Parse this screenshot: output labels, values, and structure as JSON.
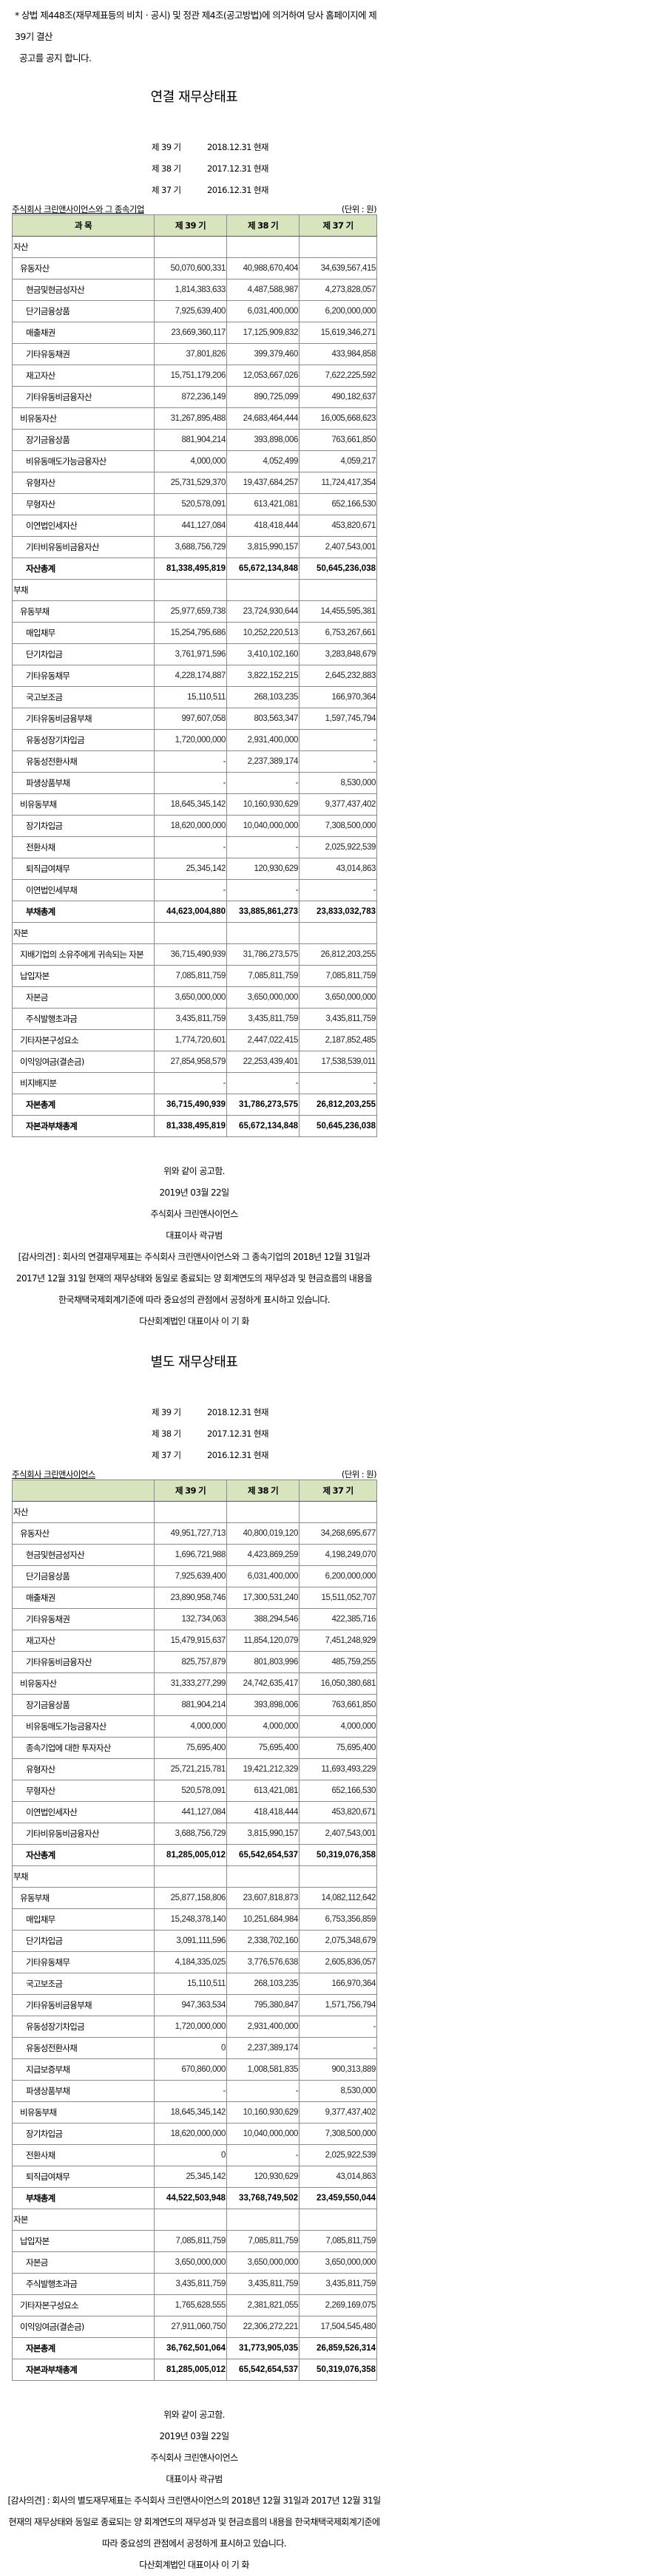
{
  "intro": {
    "line1": "* 상법 제448조(재무제표등의 비치ㆍ공시) 및 정관 제4조(공고방법)에 의거하여 당사 홈페이지에 제39기 결산",
    "line2": "공고를 공지 합니다."
  },
  "statements": [
    {
      "title": "연결 재무상태표",
      "periods": [
        {
          "period": "제 39 기",
          "date": "2018.12.31 현재"
        },
        {
          "period": "제 38 기",
          "date": "2017.12.31 현재"
        },
        {
          "period": "제 37 기",
          "date": "2016.12.31 현재"
        }
      ],
      "company": "주식회사 크린앤사이언스와 그 종속기업",
      "unit": "(단위 : 원)",
      "headers": [
        "과 목",
        "제 39 기",
        "제 38 기",
        "제 37 기"
      ],
      "rows": [
        {
          "label": "자산",
          "values": [
            "",
            "",
            ""
          ],
          "level": 0
        },
        {
          "label": "유동자산",
          "values": [
            "50,070,600,331",
            "40,988,670,404",
            "34,639,567,415"
          ],
          "level": 1
        },
        {
          "label": "현금및현금성자산",
          "values": [
            "1,814,383,633",
            "4,487,588,987",
            "4,273,828,057"
          ],
          "level": 2
        },
        {
          "label": "단기금융상품",
          "values": [
            "7,925,639,400",
            "6,031,400,000",
            "6,200,000,000"
          ],
          "level": 2
        },
        {
          "label": "매출채권",
          "values": [
            "23,669,360,117",
            "17,125,909,832",
            "15,619,346,271"
          ],
          "level": 2
        },
        {
          "label": "기타유동채권",
          "values": [
            "37,801,826",
            "399,379,460",
            "433,984,858"
          ],
          "level": 2
        },
        {
          "label": "재고자산",
          "values": [
            "15,751,179,206",
            "12,053,667,026",
            "7,622,225,592"
          ],
          "level": 2
        },
        {
          "label": "기타유동비금융자산",
          "values": [
            "872,236,149",
            "890,725,099",
            "490,182,637"
          ],
          "level": 2
        },
        {
          "label": "비유동자산",
          "values": [
            "31,267,895,488",
            "24,683,464,444",
            "16,005,668,623"
          ],
          "level": 1
        },
        {
          "label": "장기금융상품",
          "values": [
            "881,904,214",
            "393,898,006",
            "763,661,850"
          ],
          "level": 2
        },
        {
          "label": "비유동매도가능금융자산",
          "values": [
            "4,000,000",
            "4,052,499",
            "4,059,217"
          ],
          "level": 2
        },
        {
          "label": "유형자산",
          "values": [
            "25,731,529,370",
            "19,437,684,257",
            "11,724,417,354"
          ],
          "level": 2
        },
        {
          "label": "무형자산",
          "values": [
            "520,578,091",
            "613,421,081",
            "652,166,530"
          ],
          "level": 2
        },
        {
          "label": "이연법인세자산",
          "values": [
            "441,127,084",
            "418,418,444",
            "453,820,671"
          ],
          "level": 2
        },
        {
          "label": "기타비유동비금융자산",
          "values": [
            "3,688,756,729",
            "3,815,990,157",
            "2,407,543,001"
          ],
          "level": 2
        },
        {
          "label": "자산총계",
          "values": [
            "81,338,495,819",
            "65,672,134,848",
            "50,645,236,038"
          ],
          "level": 1,
          "bold": true
        },
        {
          "label": "부채",
          "values": [
            "",
            "",
            ""
          ],
          "level": 0
        },
        {
          "label": "유동부채",
          "values": [
            "25,977,659,738",
            "23,724,930,644",
            "14,455,595,381"
          ],
          "level": 1
        },
        {
          "label": "매입채무",
          "values": [
            "15,254,795,686",
            "10,252,220,513",
            "6,753,267,661"
          ],
          "level": 2
        },
        {
          "label": "단기차입금",
          "values": [
            "3,761,971,596",
            "3,410,102,160",
            "3,283,848,679"
          ],
          "level": 2
        },
        {
          "label": "기타유동채무",
          "values": [
            "4,228,174,887",
            "3,822,152,215",
            "2,645,232,883"
          ],
          "level": 2
        },
        {
          "label": "국고보조금",
          "values": [
            "15,110,511",
            "268,103,235",
            "166,970,364"
          ],
          "level": 2
        },
        {
          "label": "기타유동비금융부채",
          "values": [
            "997,607,058",
            "803,563,347",
            "1,597,745,794"
          ],
          "level": 2
        },
        {
          "label": "유동성장기차입금",
          "values": [
            "1,720,000,000",
            "2,931,400,000",
            "-"
          ],
          "level": 2
        },
        {
          "label": "유동성전환사채",
          "values": [
            "-",
            "2,237,389,174",
            "-"
          ],
          "level": 2
        },
        {
          "label": "파생상품부채",
          "values": [
            "-",
            "-",
            "8,530,000"
          ],
          "level": 2
        },
        {
          "label": "비유동부채",
          "values": [
            "18,645,345,142",
            "10,160,930,629",
            "9,377,437,402"
          ],
          "level": 1
        },
        {
          "label": "장기차입금",
          "values": [
            "18,620,000,000",
            "10,040,000,000",
            "7,308,500,000"
          ],
          "level": 2
        },
        {
          "label": "전환사채",
          "values": [
            "-",
            "-",
            "2,025,922,539"
          ],
          "level": 2
        },
        {
          "label": "퇴직급여채무",
          "values": [
            "25,345,142",
            "120,930,629",
            "43,014,863"
          ],
          "level": 2
        },
        {
          "label": "이연법인세부채",
          "values": [
            "-",
            "-",
            "-"
          ],
          "level": 2
        },
        {
          "label": "부채총계",
          "values": [
            "44,623,004,880",
            "33,885,861,273",
            "23,833,032,783"
          ],
          "level": 1,
          "bold": true
        },
        {
          "label": "자본",
          "values": [
            "",
            "",
            ""
          ],
          "level": 0
        },
        {
          "label": "지배기업의 소유주에게 귀속되는 자본",
          "values": [
            "36,715,490,939",
            "31,786,273,575",
            "26,812,203,255"
          ],
          "level": 1
        },
        {
          "label": "납입자본",
          "values": [
            "7,085,811,759",
            "7,085,811,759",
            "7,085,811,759"
          ],
          "level": 1
        },
        {
          "label": "자본금",
          "values": [
            "3,650,000,000",
            "3,650,000,000",
            "3,650,000,000"
          ],
          "level": 2
        },
        {
          "label": "주식발행초과금",
          "values": [
            "3,435,811,759",
            "3,435,811,759",
            "3,435,811,759"
          ],
          "level": 2
        },
        {
          "label": "기타자본구성요소",
          "values": [
            "1,774,720,601",
            "2,447,022,415",
            "2,187,852,485"
          ],
          "level": 1
        },
        {
          "label": "이익잉여금(결손금)",
          "values": [
            "27,854,958,579",
            "22,253,439,401",
            "17,538,539,011"
          ],
          "level": 1
        },
        {
          "label": "비지배지분",
          "values": [
            "-",
            "-",
            "-"
          ],
          "level": 1
        },
        {
          "label": "자본총계",
          "values": [
            "36,715,490,939",
            "31,786,273,575",
            "26,812,203,255"
          ],
          "level": 1,
          "bold": true
        },
        {
          "label": "자본과부채총계",
          "values": [
            "81,338,495,819",
            "65,672,134,848",
            "50,645,236,038"
          ],
          "level": 1,
          "bold": true
        }
      ],
      "footer": {
        "notice": "위와 같이 공고함.",
        "date": "2019년 03월 22일",
        "company": "주식회사 크린앤사이언스",
        "ceo": "대표이사 곽규범",
        "audit": [
          "[감사의견] : 회사의 연결재무제표는 주식회사 크린앤사이언스와 그 종속기업의 2018년 12월 31일과",
          "2017년 12월 31일 현재의 재무상태와 동일로 종료되는 양 회계연도의 재무성과 및 현금흐름의 내용을",
          "한국채택국제회계기준에 따라 중요성의 관점에서 공정하게 표시하고 있습니다."
        ],
        "auditor": "다산회계법인 대표이사 이 기 화"
      }
    },
    {
      "title": "별도 재무상태표",
      "periods": [
        {
          "period": "제 39 기",
          "date": "2018.12.31 현재"
        },
        {
          "period": "제 38 기",
          "date": "2017.12.31 현재"
        },
        {
          "period": "제 37 기",
          "date": "2016.12.31 현재"
        }
      ],
      "company": "주식회사 크린앤사이언스",
      "unit": "(단위 : 원)",
      "headers": [
        "",
        "제 39 기",
        "제 38 기",
        "제 37 기"
      ],
      "rows": [
        {
          "label": "자산",
          "values": [
            "",
            "",
            ""
          ],
          "level": 0
        },
        {
          "label": "유동자산",
          "values": [
            "49,951,727,713",
            "40,800,019,120",
            "34,268,695,677"
          ],
          "level": 1
        },
        {
          "label": "현금및현금성자산",
          "values": [
            "1,696,721,988",
            "4,423,869,259",
            "4,198,249,070"
          ],
          "level": 2
        },
        {
          "label": "단기금융상품",
          "values": [
            "7,925,639,400",
            "6,031,400,000",
            "6,200,000,000"
          ],
          "level": 2
        },
        {
          "label": "매출채권",
          "values": [
            "23,890,958,746",
            "17,300,531,240",
            "15,511,052,707"
          ],
          "level": 2
        },
        {
          "label": "기타유동채권",
          "values": [
            "132,734,063",
            "388,294,546",
            "422,385,716"
          ],
          "level": 2
        },
        {
          "label": "재고자산",
          "values": [
            "15,479,915,637",
            "11,854,120,079",
            "7,451,248,929"
          ],
          "level": 2
        },
        {
          "label": "기타유동비금융자산",
          "values": [
            "825,757,879",
            "801,803,996",
            "485,759,255"
          ],
          "level": 2
        },
        {
          "label": "비유동자산",
          "values": [
            "31,333,277,299",
            "24,742,635,417",
            "16,050,380,681"
          ],
          "level": 1
        },
        {
          "label": "장기금융상품",
          "values": [
            "881,904,214",
            "393,898,006",
            "763,661,850"
          ],
          "level": 2
        },
        {
          "label": "비유동매도가능금융자산",
          "values": [
            "4,000,000",
            "4,000,000",
            "4,000,000"
          ],
          "level": 2
        },
        {
          "label": "종속기업에 대한 투자자산",
          "values": [
            "75,695,400",
            "75,695,400",
            "75,695,400"
          ],
          "level": 2
        },
        {
          "label": "유형자산",
          "values": [
            "25,721,215,781",
            "19,421,212,329",
            "11,693,493,229"
          ],
          "level": 2
        },
        {
          "label": "무형자산",
          "values": [
            "520,578,091",
            "613,421,081",
            "652,166,530"
          ],
          "level": 2
        },
        {
          "label": "이연법인세자산",
          "values": [
            "441,127,084",
            "418,418,444",
            "453,820,671"
          ],
          "level": 2
        },
        {
          "label": "기타비유동비금융자산",
          "values": [
            "3,688,756,729",
            "3,815,990,157",
            "2,407,543,001"
          ],
          "level": 2
        },
        {
          "label": "자산총계",
          "values": [
            "81,285,005,012",
            "65,542,654,537",
            "50,319,076,358"
          ],
          "level": 1,
          "bold": true
        },
        {
          "label": "부채",
          "values": [
            "",
            "",
            ""
          ],
          "level": 0
        },
        {
          "label": "유동부채",
          "values": [
            "25,877,158,806",
            "23,607,818,873",
            "14,082,112,642"
          ],
          "level": 1
        },
        {
          "label": "매입채무",
          "values": [
            "15,248,378,140",
            "10,251,684,984",
            "6,753,356,859"
          ],
          "level": 2
        },
        {
          "label": "단기차입금",
          "values": [
            "3,091,111,596",
            "2,338,702,160",
            "2,075,348,679"
          ],
          "level": 2
        },
        {
          "label": "기타유동채무",
          "values": [
            "4,184,335,025",
            "3,776,576,638",
            "2,605,836,057"
          ],
          "level": 2
        },
        {
          "label": "국고보조금",
          "values": [
            "15,110,511",
            "268,103,235",
            "166,970,364"
          ],
          "level": 2
        },
        {
          "label": "기타유동비금융부채",
          "values": [
            "947,363,534",
            "795,380,847",
            "1,571,756,794"
          ],
          "level": 2
        },
        {
          "label": "유동성장기차입금",
          "values": [
            "1,720,000,000",
            "2,931,400,000",
            "-"
          ],
          "level": 2
        },
        {
          "label": "유동성전환사채",
          "values": [
            "0",
            "2,237,389,174",
            "-"
          ],
          "level": 2
        },
        {
          "label": "지급보증부채",
          "values": [
            "670,860,000",
            "1,008,581,835",
            "900,313,889"
          ],
          "level": 2
        },
        {
          "label": "파생상품부채",
          "values": [
            "-",
            "-",
            "8,530,000"
          ],
          "level": 2
        },
        {
          "label": "비유동부채",
          "values": [
            "18,645,345,142",
            "10,160,930,629",
            "9,377,437,402"
          ],
          "level": 1
        },
        {
          "label": "장기차입금",
          "values": [
            "18,620,000,000",
            "10,040,000,000",
            "7,308,500,000"
          ],
          "level": 2
        },
        {
          "label": "전환사채",
          "values": [
            "0",
            "-",
            "2,025,922,539"
          ],
          "level": 2
        },
        {
          "label": "퇴직급여채무",
          "values": [
            "25,345,142",
            "120,930,629",
            "43,014,863"
          ],
          "level": 2
        },
        {
          "label": "부채총계",
          "values": [
            "44,522,503,948",
            "33,768,749,502",
            "23,459,550,044"
          ],
          "level": 1,
          "bold": true
        },
        {
          "label": "자본",
          "values": [
            "",
            "",
            ""
          ],
          "level": 0
        },
        {
          "label": "납입자본",
          "values": [
            "7,085,811,759",
            "7,085,811,759",
            "7,085,811,759"
          ],
          "level": 1
        },
        {
          "label": "자본금",
          "values": [
            "3,650,000,000",
            "3,650,000,000",
            "3,650,000,000"
          ],
          "level": 2
        },
        {
          "label": "주식발행초과금",
          "values": [
            "3,435,811,759",
            "3,435,811,759",
            "3,435,811,759"
          ],
          "level": 2
        },
        {
          "label": "기타자본구성요소",
          "values": [
            "1,765,628,555",
            "2,381,821,055",
            "2,269,169,075"
          ],
          "level": 1
        },
        {
          "label": "이익잉여금(결손금)",
          "values": [
            "27,911,060,750",
            "22,306,272,221",
            "17,504,545,480"
          ],
          "level": 1
        },
        {
          "label": "자본총계",
          "values": [
            "36,762,501,064",
            "31,773,905,035",
            "26,859,526,314"
          ],
          "level": 1,
          "bold": true
        },
        {
          "label": "자본과부채총계",
          "values": [
            "81,285,005,012",
            "65,542,654,537",
            "50,319,076,358"
          ],
          "level": 1,
          "bold": true
        }
      ],
      "footer": {
        "notice": "위와 같이 공고함.",
        "date": "2019년 03월 22일",
        "company": "주식회사 크린앤사이언스",
        "ceo": "대표이사 곽규범",
        "audit": [
          "[감사의견] : 회사의 별도재무제표는 주식회사 크린앤사이언스의 2018년 12월 31일과 2017년 12월 31일",
          "현재의 재무상태와 동일로 종료되는 양 회계연도의 재무성과 및 현금흐름의 내용을 한국채택국제회계기준에",
          "따라 중요성의 관점에서 공정하게 표시하고 있습니다."
        ],
        "auditor": "다산회계법인 대표이사 이 기 화"
      }
    }
  ]
}
